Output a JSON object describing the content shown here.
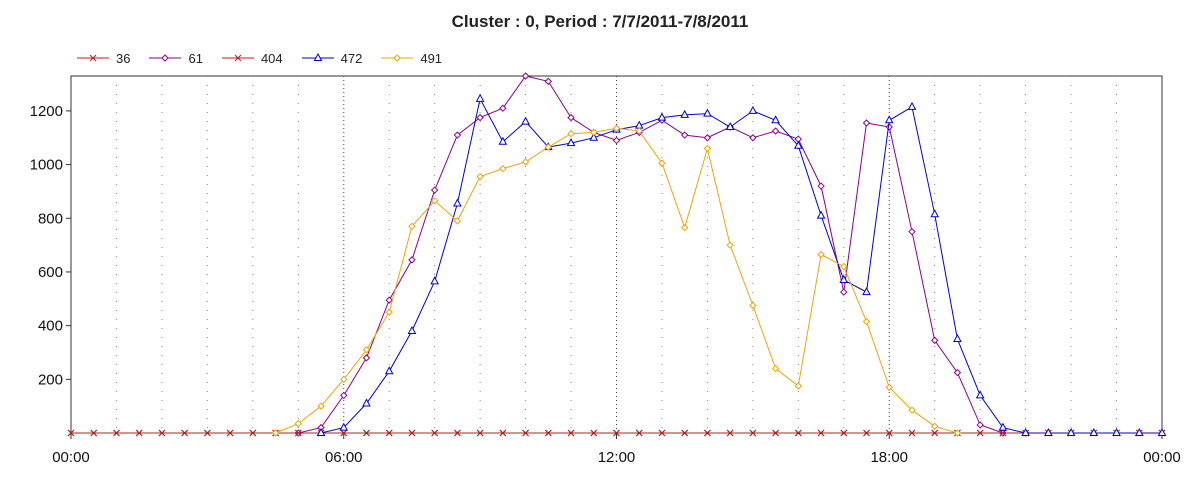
{
  "chart_data": {
    "type": "line",
    "title": "Cluster : 0, Period : 7/7/2011-7/8/2011",
    "xlabel": "",
    "ylabel": "",
    "x_hours": [
      0,
      0.5,
      1,
      1.5,
      2,
      2.5,
      3,
      3.5,
      4,
      4.5,
      5,
      5.5,
      6,
      6.5,
      7,
      7.5,
      8,
      8.5,
      9,
      9.5,
      10,
      10.5,
      11,
      11.5,
      12,
      12.5,
      13,
      13.5,
      14,
      14.5,
      15,
      15.5,
      16,
      16.5,
      17,
      17.5,
      18,
      18.5,
      19,
      19.5,
      20,
      20.5,
      21,
      21.5,
      22,
      22.5,
      23,
      23.5,
      24
    ],
    "xlim": [
      0,
      24
    ],
    "ylim": [
      0,
      1330
    ],
    "x_ticks": [
      {
        "value": 0,
        "label": "00:00"
      },
      {
        "value": 6,
        "label": "06:00"
      },
      {
        "value": 12,
        "label": "12:00"
      },
      {
        "value": 18,
        "label": "18:00"
      },
      {
        "value": 24,
        "label": "00:00"
      }
    ],
    "y_ticks": [
      {
        "value": 200,
        "label": "200"
      },
      {
        "value": 400,
        "label": "400"
      },
      {
        "value": 600,
        "label": "600"
      },
      {
        "value": 800,
        "label": "800"
      },
      {
        "value": 1000,
        "label": "1000"
      },
      {
        "value": 1200,
        "label": "1200"
      }
    ],
    "grid": true,
    "legend_position": "top-left",
    "series": [
      {
        "name": "36",
        "color": "#b22222",
        "marker": "x",
        "values": [
          0,
          0,
          0,
          0,
          0,
          0,
          0,
          0,
          0,
          0,
          0,
          0,
          0,
          0,
          0,
          0,
          0,
          0,
          0,
          0,
          0,
          0,
          0,
          0,
          0,
          0,
          0,
          0,
          0,
          0,
          0,
          0,
          0,
          0,
          0,
          0,
          0,
          0,
          0,
          0,
          0,
          0,
          0,
          0,
          0,
          0,
          0,
          0,
          0
        ]
      },
      {
        "name": "61",
        "color": "#8b008b",
        "marker": "diamond",
        "values": [
          null,
          null,
          null,
          null,
          null,
          null,
          null,
          null,
          null,
          null,
          0,
          20,
          140,
          280,
          495,
          645,
          905,
          1110,
          1175,
          1210,
          1330,
          1310,
          1175,
          1120,
          1090,
          1120,
          1165,
          1110,
          1100,
          1140,
          1100,
          1125,
          1095,
          920,
          525,
          1155,
          1140,
          750,
          345,
          225,
          30,
          0,
          0,
          null,
          null,
          null,
          null,
          null,
          null
        ]
      },
      {
        "name": "404",
        "color": "#b22222",
        "marker": "x",
        "values": [
          0,
          0,
          0,
          0,
          0,
          0,
          0,
          0,
          0,
          0,
          0,
          0,
          0,
          0,
          0,
          0,
          0,
          0,
          0,
          0,
          0,
          0,
          0,
          0,
          0,
          0,
          0,
          0,
          0,
          0,
          0,
          0,
          0,
          0,
          0,
          0,
          0,
          0,
          0,
          0,
          0,
          0,
          0,
          0,
          0,
          0,
          0,
          0,
          0
        ]
      },
      {
        "name": "472",
        "color": "#0000cd",
        "marker": "triangle",
        "values": [
          null,
          null,
          null,
          null,
          null,
          null,
          null,
          null,
          null,
          null,
          null,
          0,
          20,
          110,
          230,
          380,
          565,
          855,
          1245,
          1085,
          1160,
          1065,
          1080,
          1100,
          1130,
          1145,
          1175,
          1185,
          1190,
          1140,
          1200,
          1165,
          1070,
          810,
          570,
          525,
          1165,
          1215,
          815,
          350,
          140,
          20,
          0,
          0,
          0,
          0,
          0,
          0,
          0
        ]
      },
      {
        "name": "491",
        "color": "#f0a30a",
        "marker": "diamond",
        "values": [
          null,
          null,
          null,
          null,
          null,
          null,
          null,
          null,
          null,
          0,
          35,
          100,
          200,
          310,
          450,
          770,
          865,
          790,
          955,
          985,
          1010,
          1065,
          1115,
          1120,
          1135,
          1125,
          1005,
          765,
          1060,
          700,
          475,
          240,
          175,
          665,
          620,
          415,
          170,
          85,
          25,
          0,
          null,
          null,
          null,
          null,
          null,
          null,
          null,
          null,
          null
        ]
      }
    ]
  }
}
